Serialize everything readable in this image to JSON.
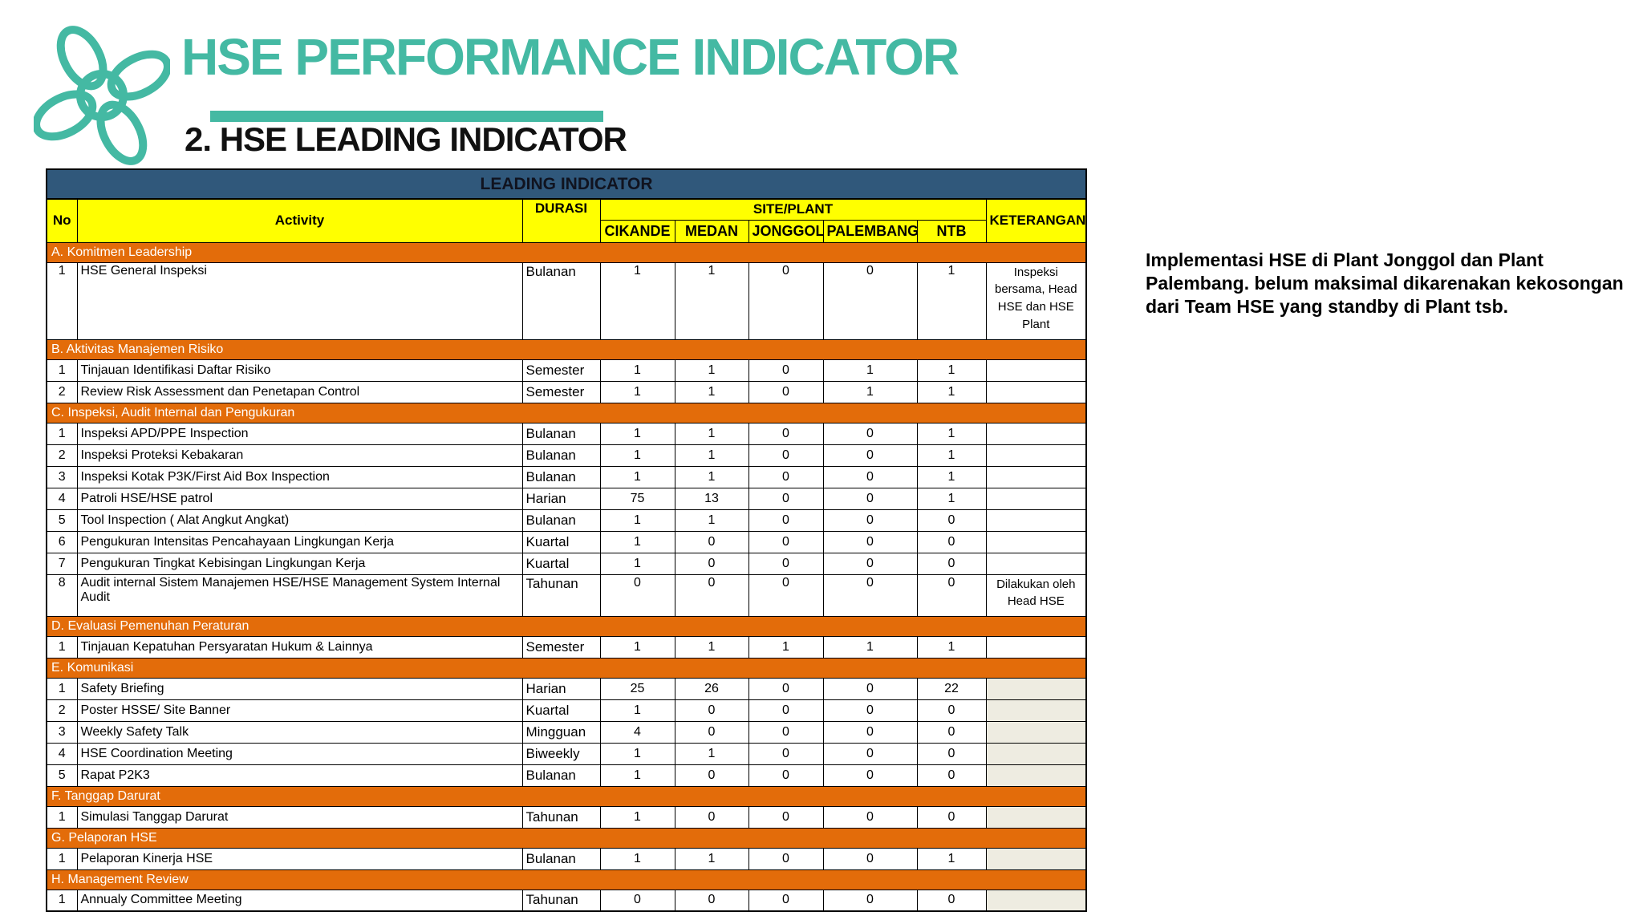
{
  "colors": {
    "accent_teal": "#44B9A3",
    "table_title_blue": "#30587B",
    "header_yellow": "#FFFF00",
    "section_orange": "#E36C0A",
    "keterangan_shade": "#EEECE1"
  },
  "header": {
    "title": "HSE PERFORMANCE INDICATOR",
    "subtitle": "2. HSE LEADING INDICATOR",
    "logo": "flower-pinwheel-logo"
  },
  "note": {
    "text": "Implementasi HSE di Plant Jonggol dan Plant Palembang. belum maksimal dikarenakan kekosongan dari Team HSE yang standby di Plant tsb."
  },
  "table": {
    "title": "LEADING INDICATOR",
    "columns": {
      "no": "No",
      "activity": "Activity",
      "durasi": "DURASI",
      "site_plant": "SITE/PLANT",
      "sites": [
        "CIKANDE",
        "MEDAN",
        "JONGGOL",
        "PALEMBANG",
        "NTB"
      ],
      "keterangan": "KETERANGAN"
    },
    "sections": [
      {
        "label": "A. Komitmen Leadership",
        "rows": [
          {
            "no": "1",
            "activity": "HSE General Inspeksi",
            "durasi": "Bulanan",
            "values": [
              "1",
              "1",
              "0",
              "0",
              "1"
            ],
            "keterangan": "Inspeksi bersama, Head HSE dan HSE Plant",
            "tall": true
          }
        ]
      },
      {
        "label": "B. Aktivitas Manajemen Risiko",
        "rows": [
          {
            "no": "1",
            "activity": "Tinjauan Identifikasi Daftar Risiko",
            "durasi": "Semester",
            "values": [
              "1",
              "1",
              "0",
              "1",
              "1"
            ],
            "keterangan": ""
          },
          {
            "no": "2",
            "activity": "Review Risk Assessment dan Penetapan Control",
            "durasi": "Semester",
            "values": [
              "1",
              "1",
              "0",
              "1",
              "1"
            ],
            "keterangan": ""
          }
        ]
      },
      {
        "label": "C. Inspeksi, Audit Internal dan Pengukuran",
        "rows": [
          {
            "no": "1",
            "activity": "Inspeksi APD/PPE Inspection",
            "durasi": "Bulanan",
            "values": [
              "1",
              "1",
              "0",
              "0",
              "1"
            ],
            "keterangan": ""
          },
          {
            "no": "2",
            "activity": "Inspeksi Proteksi Kebakaran",
            "durasi": "Bulanan",
            "values": [
              "1",
              "1",
              "0",
              "0",
              "1"
            ],
            "keterangan": ""
          },
          {
            "no": "3",
            "activity": "Inspeksi Kotak P3K/First Aid Box Inspection",
            "durasi": "Bulanan",
            "values": [
              "1",
              "1",
              "0",
              "0",
              "1"
            ],
            "keterangan": ""
          },
          {
            "no": "4",
            "activity": "Patroli HSE/HSE patrol",
            "durasi": "Harian",
            "values": [
              "75",
              "13",
              "0",
              "0",
              "1"
            ],
            "keterangan": ""
          },
          {
            "no": "5",
            "activity": "Tool Inspection ( Alat Angkut Angkat)",
            "durasi": "Bulanan",
            "values": [
              "1",
              "1",
              "0",
              "0",
              "0"
            ],
            "keterangan": ""
          },
          {
            "no": "6",
            "activity": "Pengukuran Intensitas Pencahayaan Lingkungan Kerja",
            "durasi": "Kuartal",
            "values": [
              "1",
              "0",
              "0",
              "0",
              "0"
            ],
            "keterangan": ""
          },
          {
            "no": "7",
            "activity": "Pengukuran Tingkat Kebisingan Lingkungan Kerja",
            "durasi": "Kuartal",
            "values": [
              "1",
              "0",
              "0",
              "0",
              "0"
            ],
            "keterangan": ""
          },
          {
            "no": "8",
            "activity": "Audit internal Sistem Manajemen HSE/HSE Management System Internal Audit",
            "durasi": "Tahunan",
            "values": [
              "0",
              "0",
              "0",
              "0",
              "0"
            ],
            "keterangan": "Dilakukan oleh Head HSE",
            "tall2": true
          }
        ]
      },
      {
        "label": "D. Evaluasi Pemenuhan Peraturan",
        "rows": [
          {
            "no": "1",
            "activity": "Tinjauan Kepatuhan Persyaratan Hukum & Lainnya",
            "durasi": "Semester",
            "values": [
              "1",
              "1",
              "1",
              "1",
              "1"
            ],
            "keterangan": ""
          }
        ]
      },
      {
        "label": "E. Komunikasi",
        "rows": [
          {
            "no": "1",
            "activity": "Safety Briefing",
            "durasi": "Harian",
            "values": [
              "25",
              "26",
              "0",
              "0",
              "22"
            ],
            "keterangan": "",
            "shaded": true
          },
          {
            "no": "2",
            "activity": "Poster HSSE/ Site Banner",
            "durasi": "Kuartal",
            "values": [
              "1",
              "0",
              "0",
              "0",
              "0"
            ],
            "keterangan": "",
            "shaded": true
          },
          {
            "no": "3",
            "activity": "Weekly Safety Talk",
            "durasi": "Mingguan",
            "values": [
              "4",
              "0",
              "0",
              "0",
              "0"
            ],
            "keterangan": "",
            "shaded": true
          },
          {
            "no": "4",
            "activity": "HSE Coordination Meeting",
            "durasi": "Biweekly",
            "values": [
              "1",
              "1",
              "0",
              "0",
              "0"
            ],
            "keterangan": "",
            "shaded": true
          },
          {
            "no": "5",
            "activity": "Rapat P2K3",
            "durasi": "Bulanan",
            "values": [
              "1",
              "0",
              "0",
              "0",
              "0"
            ],
            "keterangan": "",
            "shaded": true
          }
        ]
      },
      {
        "label": "F. Tanggap Darurat",
        "rows": [
          {
            "no": "1",
            "activity": "Simulasi Tanggap Darurat",
            "durasi": "Tahunan",
            "values": [
              "1",
              "0",
              "0",
              "0",
              "0"
            ],
            "keterangan": "",
            "shaded": true
          }
        ]
      },
      {
        "label": "G.  Pelaporan HSE",
        "rows": [
          {
            "no": "1",
            "activity": "Pelaporan Kinerja HSE",
            "durasi": "Bulanan",
            "values": [
              "1",
              "1",
              "0",
              "0",
              "1"
            ],
            "keterangan": "",
            "shaded": true
          }
        ]
      },
      {
        "label": "H.  Management Review",
        "rows": [
          {
            "no": "1",
            "activity": "Annualy  Committee Meeting",
            "durasi": "Tahunan",
            "values": [
              "0",
              "0",
              "0",
              "0",
              "0"
            ],
            "keterangan": "",
            "shaded": true
          }
        ]
      }
    ]
  }
}
